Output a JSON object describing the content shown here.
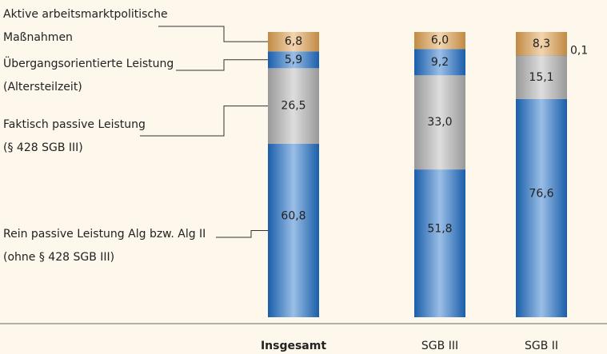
{
  "chart_data": {
    "type": "stacked-bar",
    "categories": [
      "Insgesamt",
      "SGB III",
      "SGB II"
    ],
    "series": [
      {
        "name": "Rein passive Leistung Alg bzw. Alg II\n(ohne § 428 SGB III)",
        "color": "#1f6fc8",
        "values": [
          60.8,
          51.8,
          76.6
        ],
        "value_labels": [
          "60,8",
          "51,8",
          "76,6"
        ]
      },
      {
        "name": "Faktisch passive Leistung\n(§ 428 SGB III)",
        "color": "#b4b4b4",
        "values": [
          26.5,
          33.0,
          15.1
        ],
        "value_labels": [
          "26,5",
          "33,0",
          "15,1"
        ]
      },
      {
        "name": "Übergangsorientierte Leistung\n(Altersteilzeit)",
        "color": "#1f6fc8",
        "values": [
          5.9,
          9.2,
          0.1
        ],
        "value_labels": [
          "5,9",
          "9,2",
          "0,1"
        ]
      },
      {
        "name": "Aktive arbeitsmarktpolitische\nMaßnahmen",
        "color": "#e3a250",
        "values": [
          6.8,
          6.0,
          8.3
        ],
        "value_labels": [
          "6,8",
          "6,0",
          "8,3"
        ]
      }
    ]
  }
}
